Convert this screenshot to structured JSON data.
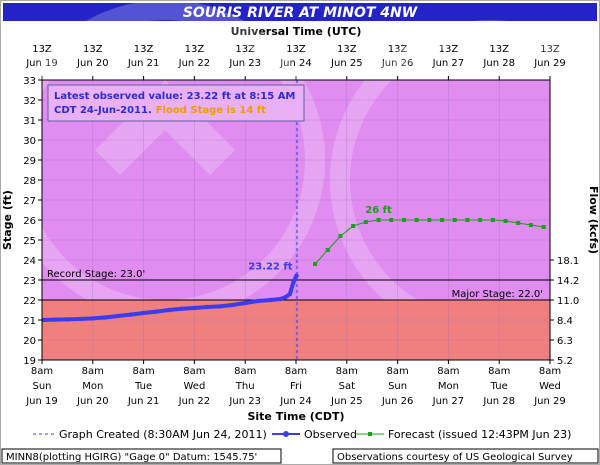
{
  "header": {
    "title": "SOURIS RIVER AT MINOT 4NW"
  },
  "top_axis": {
    "title": "Universal Time (UTC)",
    "labels": [
      [
        "13Z",
        "Jun 19"
      ],
      [
        "13Z",
        "Jun 20"
      ],
      [
        "13Z",
        "Jun 21"
      ],
      [
        "13Z",
        "Jun 22"
      ],
      [
        "13Z",
        "Jun 23"
      ],
      [
        "13Z",
        "Jun 24"
      ],
      [
        "13Z",
        "Jun 25"
      ],
      [
        "13Z",
        "Jun 26"
      ],
      [
        "13Z",
        "Jun 27"
      ],
      [
        "13Z",
        "Jun 28"
      ],
      [
        "13Z",
        "Jun 29"
      ]
    ]
  },
  "bottom_axis": {
    "title": "Site Time (CDT)",
    "labels": [
      [
        "8am",
        "Sun",
        "Jun 19"
      ],
      [
        "8am",
        "Mon",
        "Jun 20"
      ],
      [
        "8am",
        "Tue",
        "Jun 21"
      ],
      [
        "8am",
        "Wed",
        "Jun 22"
      ],
      [
        "8am",
        "Thu",
        "Jun 23"
      ],
      [
        "8am",
        "Fri",
        "Jun 24"
      ],
      [
        "8am",
        "Sat",
        "Jun 25"
      ],
      [
        "8am",
        "Sun",
        "Jun 26"
      ],
      [
        "8am",
        "Mon",
        "Jun 27"
      ],
      [
        "8am",
        "Tue",
        "Jun 28"
      ],
      [
        "8am",
        "Wed",
        "Jun 29"
      ]
    ]
  },
  "info_box": {
    "line1": "Latest observed value: 23.22 ft at 8:15 AM",
    "line2a": "CDT 24-Jun-2011.",
    "line2b": "Flood Stage is 14 ft"
  },
  "thresholds": {
    "record_label": "Record Stage: 23.0'",
    "major_label": "Major Stage: 22.0'"
  },
  "annotations": {
    "observed_label": "23.22 ft",
    "forecast_label": "26 ft"
  },
  "legend": {
    "graph_created": "Graph Created (8:30AM Jun 24, 2011)",
    "observed": "Observed",
    "forecast": "Forecast (issued 12:43PM Jun 23)"
  },
  "footer": {
    "left": "MINN8(plotting HGIRG) \"Gage 0\" Datum: 1545.75'",
    "right": "Observations courtesy of US Geological Survey"
  },
  "colors": {
    "title_bg": "#2323c8",
    "plot_bg": "#e08cf0",
    "major_fill": "#f08080",
    "observed": "#3b3bf0",
    "forecast": "#18a018",
    "info_text": "#2b2bd8",
    "flood_text": "#f09a00",
    "frame": "#aaaaaa"
  },
  "chart_data": {
    "type": "line",
    "xlabel": "Site Time (CDT)",
    "ylabel": "Stage (ft)",
    "y2label": "Flow (kcfs)",
    "x_unit": "days since 8am CDT Jun 19, 2011",
    "xlim": [
      0,
      10
    ],
    "ylim": [
      19,
      33
    ],
    "y_ticks": [
      19,
      20,
      21,
      22,
      23,
      24,
      25,
      26,
      27,
      28,
      29,
      30,
      31,
      32,
      33
    ],
    "flow_ticks": [
      {
        "stage": 19.0,
        "label": "5.2"
      },
      {
        "stage": 20.0,
        "label": "6.3"
      },
      {
        "stage": 21.0,
        "label": "8.4"
      },
      {
        "stage": 22.0,
        "label": "11.0"
      },
      {
        "stage": 23.0,
        "label": "14.2"
      },
      {
        "stage": 24.0,
        "label": "18.1"
      }
    ],
    "graph_created_x": 5.02,
    "record_stage": 23.0,
    "major_stage": 22.0,
    "flood_stage": 14,
    "series": [
      {
        "name": "Observed",
        "x": [
          0.0,
          0.25,
          0.5,
          0.75,
          1.0,
          1.25,
          1.5,
          1.75,
          2.0,
          2.25,
          2.5,
          2.75,
          3.0,
          3.25,
          3.5,
          3.75,
          4.0,
          4.25,
          4.5,
          4.7,
          4.8,
          4.88,
          4.95,
          5.01
        ],
        "y": [
          21.0,
          21.02,
          21.03,
          21.05,
          21.08,
          21.13,
          21.2,
          21.27,
          21.35,
          21.42,
          21.5,
          21.56,
          21.6,
          21.65,
          21.68,
          21.75,
          21.85,
          21.95,
          22.0,
          22.05,
          22.15,
          22.3,
          22.9,
          23.22
        ]
      },
      {
        "name": "Forecast",
        "x": [
          5.375,
          5.625,
          5.875,
          6.125,
          6.375,
          6.625,
          6.875,
          7.125,
          7.375,
          7.625,
          7.875,
          8.125,
          8.375,
          8.625,
          8.875,
          9.125,
          9.375,
          9.625,
          9.875
        ],
        "y": [
          23.8,
          24.5,
          25.2,
          25.7,
          25.9,
          26.0,
          26.0,
          26.0,
          26.0,
          26.0,
          26.0,
          26.0,
          26.0,
          26.0,
          26.0,
          25.95,
          25.85,
          25.75,
          25.65
        ]
      }
    ]
  }
}
